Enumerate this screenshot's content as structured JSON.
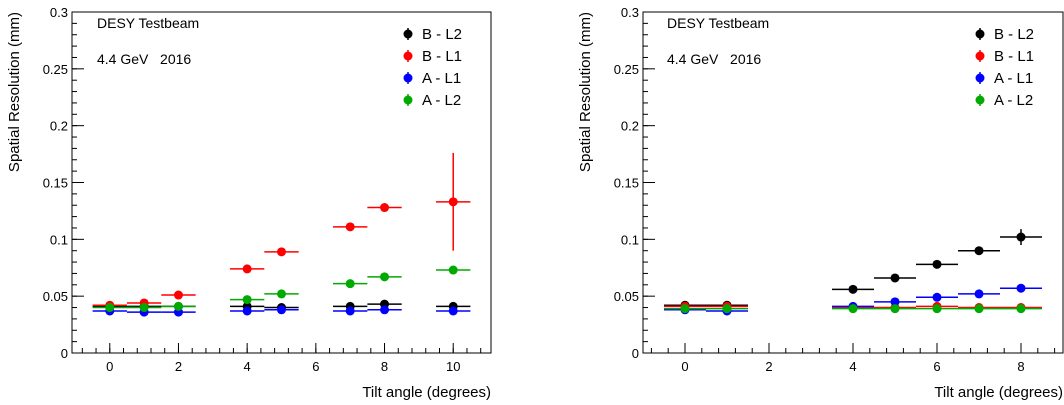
{
  "chart_data": [
    {
      "type": "scatter",
      "xlabel": "Tilt angle (degrees)",
      "ylabel": "Spatial Resolution (mm)",
      "xlim": [
        -1.1,
        11.1
      ],
      "ylim": [
        0,
        0.3
      ],
      "x_ticks": [
        0,
        2,
        4,
        6,
        8,
        10
      ],
      "y_ticks": [
        0,
        0.05,
        0.1,
        0.15,
        0.2,
        0.25,
        0.3
      ],
      "y_tick_labels": [
        "0",
        "0.05",
        "0.1",
        "0.15",
        "0.2",
        "0.25",
        "0.3"
      ],
      "annotations": [
        "DESY Testbeam",
        "4.4 GeV   2016"
      ],
      "legend_position": "top-right",
      "x_error": 0.5,
      "series": [
        {
          "name": "B - L2",
          "color": "#000000",
          "x": [
            0,
            1,
            2,
            4,
            5,
            7,
            8,
            10
          ],
          "y": [
            0.041,
            0.041,
            0.041,
            0.041,
            0.04,
            0.041,
            0.043,
            0.041
          ],
          "yerr": [
            0.001,
            0.001,
            0.001,
            0.001,
            0.001,
            0.001,
            0.001,
            0.001
          ]
        },
        {
          "name": "B - L1",
          "color": "#ff0000",
          "x": [
            0,
            1,
            2,
            4,
            5,
            7,
            8,
            10
          ],
          "y": [
            0.042,
            0.044,
            0.051,
            0.074,
            0.089,
            0.111,
            0.128,
            0.133
          ],
          "yerr": [
            0.001,
            0.001,
            0.002,
            0.002,
            0.002,
            0.002,
            0.002,
            0.043
          ]
        },
        {
          "name": "A - L1",
          "color": "#0000ff",
          "x": [
            0,
            1,
            2,
            4,
            5,
            7,
            8,
            10
          ],
          "y": [
            0.037,
            0.036,
            0.036,
            0.037,
            0.038,
            0.037,
            0.038,
            0.037
          ],
          "yerr": [
            0.001,
            0.001,
            0.001,
            0.001,
            0.001,
            0.001,
            0.001,
            0.001
          ]
        },
        {
          "name": "A - L2",
          "color": "#00aa00",
          "x": [
            0,
            1,
            2,
            4,
            5,
            7,
            8,
            10
          ],
          "y": [
            0.04,
            0.04,
            0.041,
            0.047,
            0.052,
            0.061,
            0.067,
            0.073
          ],
          "yerr": [
            0.001,
            0.001,
            0.001,
            0.001,
            0.001,
            0.001,
            0.001,
            0.001
          ]
        }
      ]
    },
    {
      "type": "scatter",
      "xlabel": "Tilt angle (degrees)",
      "ylabel": "Spatial Resolution (mm)",
      "xlim": [
        -1.0,
        9.0
      ],
      "ylim": [
        0,
        0.3
      ],
      "x_ticks": [
        0,
        2,
        4,
        6,
        8
      ],
      "y_ticks": [
        0,
        0.05,
        0.1,
        0.15,
        0.2,
        0.25,
        0.3
      ],
      "y_tick_labels": [
        "0",
        "0.05",
        "0.1",
        "0.15",
        "0.2",
        "0.25",
        "0.3"
      ],
      "annotations": [
        "DESY Testbeam",
        "4.4 GeV   2016"
      ],
      "legend_position": "top-right",
      "x_error": 0.5,
      "series": [
        {
          "name": "B - L2",
          "color": "#000000",
          "x": [
            0,
            1,
            4,
            5,
            6,
            7,
            8
          ],
          "y": [
            0.042,
            0.042,
            0.056,
            0.066,
            0.078,
            0.09,
            0.102
          ],
          "yerr": [
            0.001,
            0.001,
            0.002,
            0.002,
            0.002,
            0.002,
            0.007
          ]
        },
        {
          "name": "B - L1",
          "color": "#ff0000",
          "x": [
            0,
            1,
            4,
            5,
            6,
            7,
            8
          ],
          "y": [
            0.041,
            0.041,
            0.04,
            0.04,
            0.041,
            0.04,
            0.04
          ],
          "yerr": [
            0.001,
            0.001,
            0.001,
            0.001,
            0.001,
            0.001,
            0.001
          ]
        },
        {
          "name": "A - L1",
          "color": "#0000ff",
          "x": [
            0,
            1,
            4,
            5,
            6,
            7,
            8
          ],
          "y": [
            0.038,
            0.037,
            0.041,
            0.045,
            0.049,
            0.052,
            0.057
          ],
          "yerr": [
            0.001,
            0.001,
            0.001,
            0.001,
            0.001,
            0.001,
            0.001
          ]
        },
        {
          "name": "A - L2",
          "color": "#00aa00",
          "x": [
            0,
            1,
            4,
            5,
            6,
            7,
            8
          ],
          "y": [
            0.039,
            0.039,
            0.039,
            0.039,
            0.039,
            0.039,
            0.039
          ],
          "yerr": [
            0.001,
            0.001,
            0.001,
            0.001,
            0.001,
            0.001,
            0.001
          ]
        }
      ]
    }
  ]
}
